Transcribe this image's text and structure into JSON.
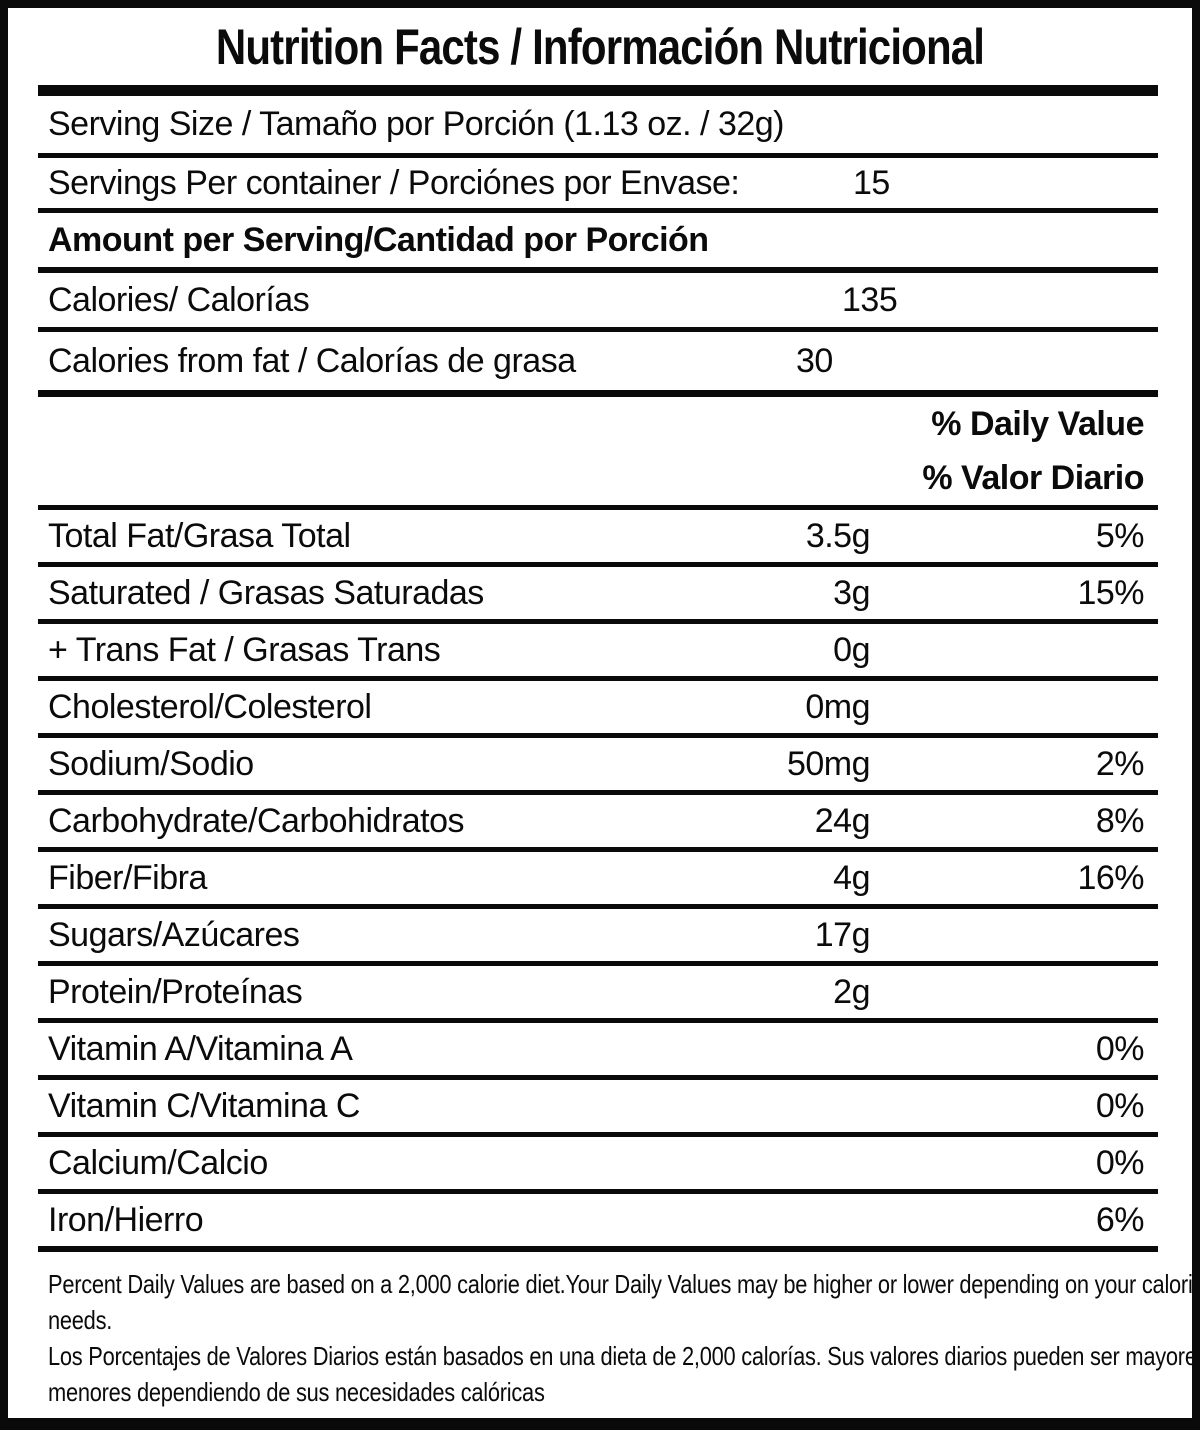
{
  "title": "Nutrition Facts / Información Nutricional",
  "serving": {
    "serving_size": "Serving Size / Tamaño por Porción (1.13 oz. / 32g)",
    "servings_per_container_label": "Servings Per container / Porciónes por Envase:",
    "servings_per_container_value": "15"
  },
  "amount_per_serving_heading": "Amount per Serving/Cantidad por Porción",
  "calories": {
    "label": "Calories/ Calorías",
    "value": "135"
  },
  "calories_from_fat": {
    "label": "Calories from fat / Calorías de grasa",
    "value": "30"
  },
  "daily_value_heading": {
    "en": "% Daily Value",
    "es": "% Valor Diario"
  },
  "nutrients": [
    {
      "label": "Total Fat/Grasa Total",
      "amount": "3.5g",
      "dv": "5%"
    },
    {
      "label": "Saturated / Grasas Saturadas",
      "amount": "3g",
      "dv": "15%"
    },
    {
      "label": "+ Trans Fat / Grasas Trans",
      "amount": "0g",
      "dv": ""
    },
    {
      "label": "Cholesterol/Colesterol",
      "amount": "0mg",
      "dv": ""
    },
    {
      "label": "Sodium/Sodio",
      "amount": "50mg",
      "dv": "2%"
    },
    {
      "label": "Carbohydrate/Carbohidratos",
      "amount": "24g",
      "dv": "8%"
    },
    {
      "label": "Fiber/Fibra",
      "amount": "4g",
      "dv": "16%"
    },
    {
      "label": "Sugars/Azúcares",
      "amount": "17g",
      "dv": ""
    },
    {
      "label": "Protein/Proteínas",
      "amount": "2g",
      "dv": ""
    },
    {
      "label": "Vitamin A/Vitamina A",
      "amount": "",
      "dv": "0%"
    },
    {
      "label": "Vitamin C/Vitamina C",
      "amount": "",
      "dv": "0%"
    },
    {
      "label": "Calcium/Calcio",
      "amount": "",
      "dv": "0%"
    },
    {
      "label": "Iron/Hierro",
      "amount": "",
      "dv": "6%"
    }
  ],
  "footnote": {
    "en": "Percent Daily Values are based on a 2,000 calorie diet.Your Daily Values may be higher or lower depending on your calorie needs.",
    "es": "Los Porcentajes de Valores Diarios están basados en una dieta de 2,000 calorías. Sus valores diarios pueden ser mayores o menores dependiendo de sus necesidades calóricas"
  },
  "colors": {
    "ink": "#0b0b0b",
    "background": "#ffffff"
  }
}
